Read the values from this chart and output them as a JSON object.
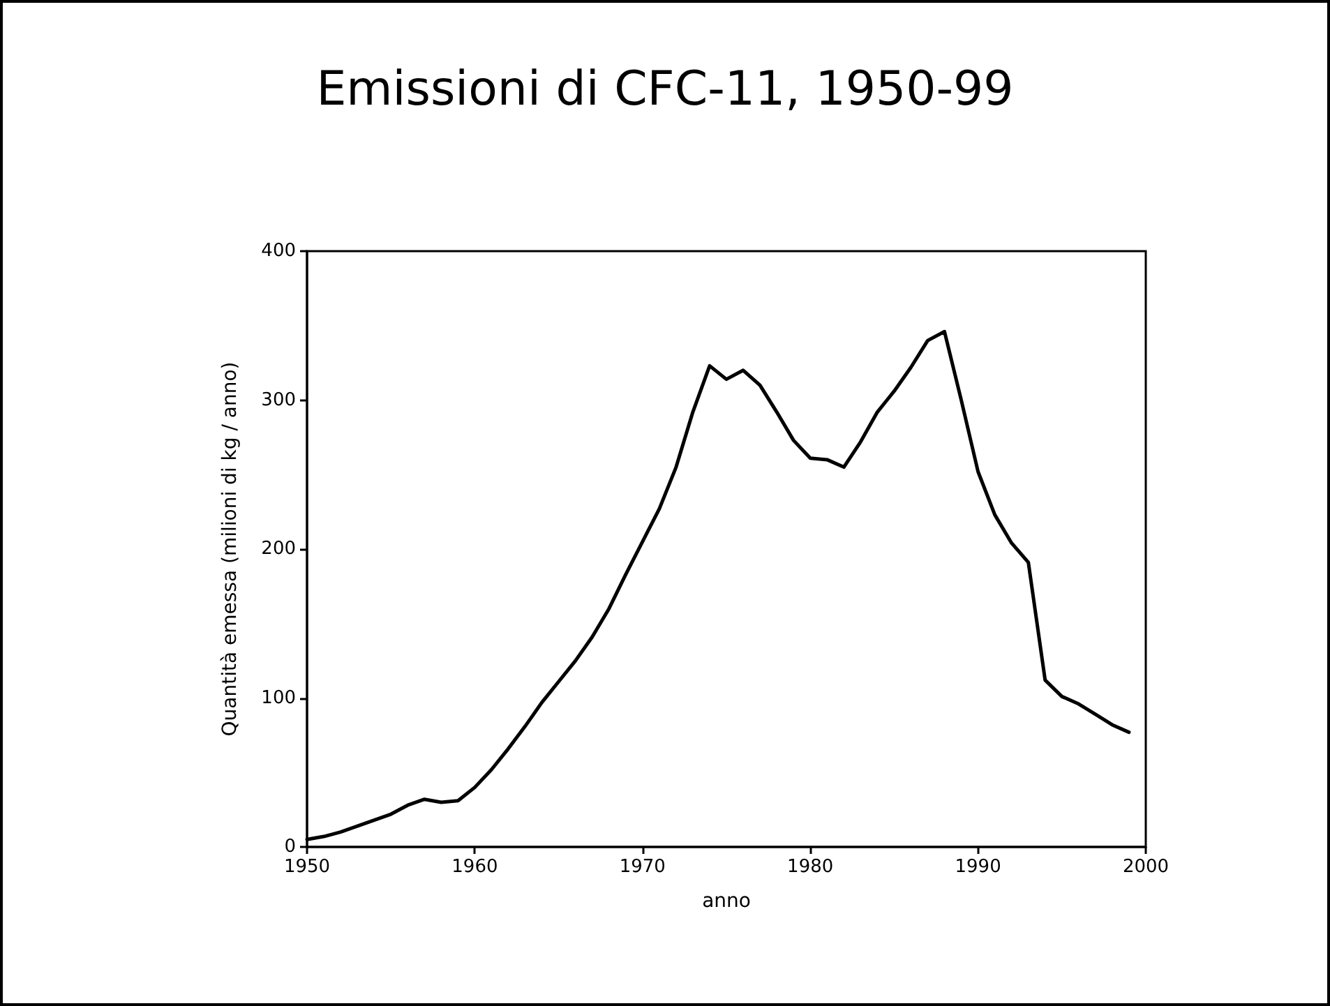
{
  "chart_data": {
    "type": "line",
    "title": "Emissioni di CFC-11, 1950-99",
    "xlabel": "anno",
    "ylabel": "Quantità emessa (milioni di kg / anno)",
    "x": [
      1950,
      1951,
      1952,
      1953,
      1954,
      1955,
      1956,
      1957,
      1958,
      1959,
      1960,
      1961,
      1962,
      1963,
      1964,
      1965,
      1966,
      1967,
      1968,
      1969,
      1970,
      1971,
      1972,
      1973,
      1974,
      1975,
      1976,
      1977,
      1978,
      1979,
      1980,
      1981,
      1982,
      1983,
      1984,
      1985,
      1986,
      1987,
      1988,
      1989,
      1990,
      1991,
      1992,
      1993,
      1994,
      1995,
      1996,
      1997,
      1998,
      1999
    ],
    "series": [
      {
        "color": "#000000",
        "values": [
          5,
          7,
          10,
          14,
          18,
          22,
          28,
          32,
          30,
          31,
          40,
          52,
          66,
          81,
          97,
          111,
          125,
          141,
          160,
          183,
          205,
          227,
          255,
          292,
          323,
          314,
          320,
          310,
          292,
          273,
          261,
          260,
          255,
          272,
          292,
          306,
          322,
          340,
          346,
          300,
          252,
          223,
          204,
          191,
          112,
          101,
          96,
          89,
          82,
          77
        ]
      }
    ],
    "xlim": [
      1950,
      2000
    ],
    "xticks": [
      1950,
      1960,
      1970,
      1980,
      1990,
      2000
    ],
    "ylim": [
      0,
      400
    ],
    "yticks": [
      0,
      100,
      200,
      300,
      400
    ],
    "grid": false,
    "marker": "none",
    "line_style": "solid"
  }
}
